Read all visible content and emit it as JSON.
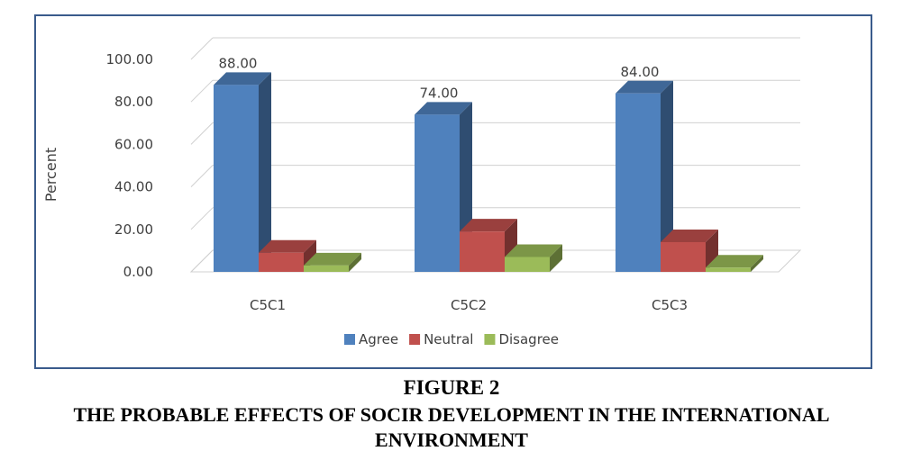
{
  "chart_data": {
    "type": "bar",
    "title": "",
    "xlabel": "",
    "ylabel": "Percent",
    "ylim": [
      0,
      100
    ],
    "yticks": [
      "0.00",
      "20.00",
      "40.00",
      "60.00",
      "80.00",
      "100.00"
    ],
    "categories": [
      "C5C1",
      "C5C2",
      "C5C3"
    ],
    "series": [
      {
        "name": "Agree",
        "values": [
          88,
          74,
          84
        ],
        "color": "#4f81bd",
        "data_labels": [
          "88.00",
          "74.00",
          "84.00"
        ]
      },
      {
        "name": "Neutral",
        "values": [
          9,
          19,
          14
        ],
        "color": "#c0504d"
      },
      {
        "name": "Disagree",
        "values": [
          3,
          7,
          2
        ],
        "color": "#9bbb59"
      }
    ],
    "grid": true,
    "legend_position": "bottom",
    "style": "3d-clustered-column"
  },
  "caption": {
    "label": "FIGURE 2",
    "title_line1": "THE PROBABLE EFFECTS OF SOCIR DEVELOPMENT IN THE INTERNATIONAL",
    "title_line2": "ENVIRONMENT"
  }
}
